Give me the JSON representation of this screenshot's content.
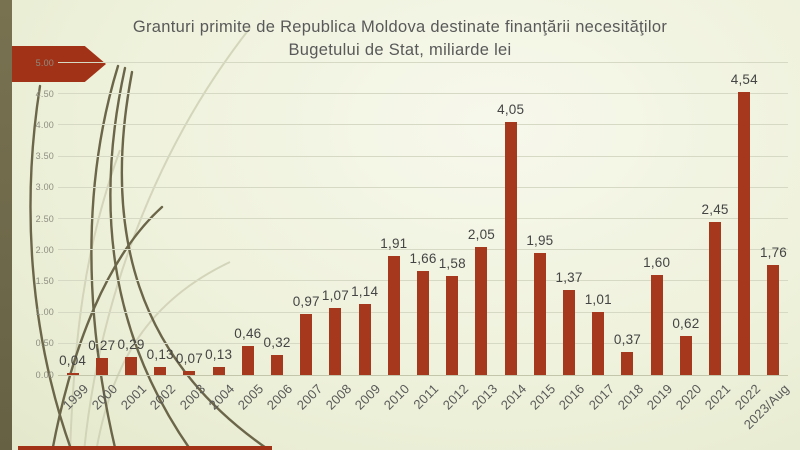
{
  "slide": {
    "title_line1": "Granturi primite de Republica Moldova destinate finanţării necesităţilor",
    "title_line2": "Bugetului de Stat, miliarde lei"
  },
  "chart_data": {
    "type": "bar",
    "title": "Granturi primite de Republica Moldova destinate finanţării necesităţilor Bugetului de Stat, miliarde lei",
    "categories": [
      "1999",
      "2000",
      "2001",
      "2002",
      "2003",
      "2004",
      "2005",
      "2006",
      "2007",
      "2008",
      "2009",
      "2010",
      "2011",
      "2012",
      "2013",
      "2014",
      "2015",
      "2016",
      "2017",
      "2018",
      "2019",
      "2020",
      "2021",
      "2022",
      "2023/Aug"
    ],
    "values": [
      0.04,
      0.27,
      0.29,
      0.13,
      0.07,
      0.13,
      0.46,
      0.32,
      0.97,
      1.07,
      1.14,
      1.91,
      1.66,
      1.58,
      2.05,
      4.05,
      1.95,
      1.37,
      1.01,
      0.37,
      1.6,
      0.62,
      2.45,
      4.54,
      1.76
    ],
    "data_labels": [
      "0,04",
      "0,27",
      "0,29",
      "0,13",
      "0,07",
      "0,13",
      "0,46",
      "0,32",
      "0,97",
      "1,07",
      "1,14",
      "1,91",
      "1,66",
      "1,58",
      "2,05",
      "4,05",
      "1,95",
      "1,37",
      "1,01",
      "0,37",
      "1,60",
      "0,62",
      "2,45",
      "4,54",
      "1,76"
    ],
    "xlabel": "",
    "ylabel": "",
    "ylim": [
      0,
      5
    ],
    "ytick_interval": 0.5,
    "ytick_labels": [
      "0.00",
      "0.50",
      "1.00",
      "1.50",
      "2.00",
      "2.50",
      "3.00",
      "3.50",
      "4.00",
      "4.50",
      "5.00"
    ],
    "grid": true,
    "legend": false,
    "x_labels_rotation_deg": -45,
    "bar_color": "#a5381d"
  },
  "colors": {
    "background_light": "#f7f8ec",
    "background_dark": "#dce3c3",
    "left_band": "#6f694b",
    "arrow_red": "#a23217",
    "bottom_strip_red": "#a23217",
    "bar": "#a5381d",
    "gridline": "#d6d9c3",
    "axis_line": "#c3c6ab",
    "title_text": "#595959",
    "data_label_text": "#444444",
    "x_label_text": "#595959",
    "y_label_text": "#8d8d80",
    "swoosh_dark": "#6b6549",
    "swoosh_light": "#cfd0b4"
  }
}
